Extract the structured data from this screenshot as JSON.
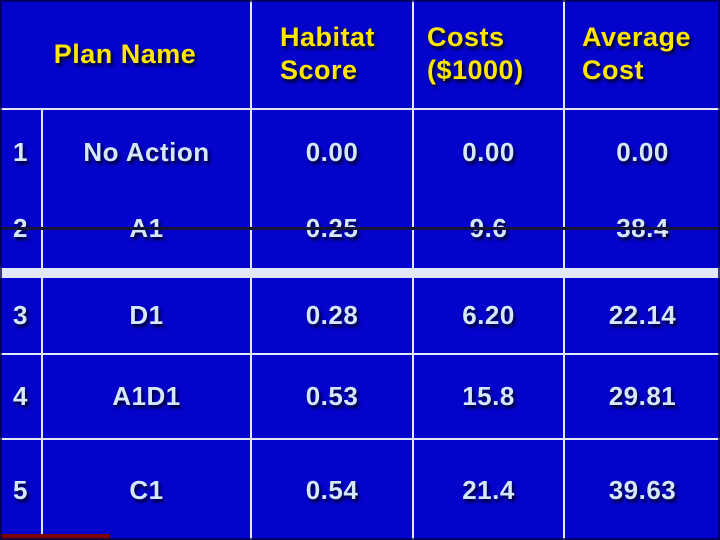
{
  "table": {
    "header": {
      "plan": "Plan Name",
      "habitat_line1": "Habitat",
      "habitat_line2": "Score",
      "costs_line1": "Costs",
      "costs_line2": "($1000)",
      "avg_line1": "Average",
      "avg_line2": "Cost"
    },
    "rows": [
      {
        "num": "1",
        "plan": "No Action",
        "habitat": "0.00",
        "costs": "0.00",
        "avg": "0.00",
        "struck": false
      },
      {
        "num": "2",
        "plan": "A1",
        "habitat": "0.25",
        "costs": "9.6",
        "avg": "38.4",
        "struck": true
      },
      {
        "num": "3",
        "plan": "D1",
        "habitat": "0.28",
        "costs": "6.20",
        "avg": "22.14",
        "struck": false
      },
      {
        "num": "4",
        "plan": "A1D1",
        "habitat": "0.53",
        "costs": "15.8",
        "avg": "29.81",
        "struck": false
      },
      {
        "num": "5",
        "plan": "C1",
        "habitat": "0.54",
        "costs": "21.4",
        "avg": "39.63",
        "struck": false
      }
    ]
  },
  "annotations": {
    "strikethrough": {
      "row": "2",
      "color": "#15153a"
    },
    "footer_bar": {
      "color": "#7a0505"
    }
  },
  "colors": {
    "cell_blue": "#0303cc",
    "grid_line": "#e2e7fa",
    "header_text": "#ffe600",
    "body_text": "#d5e8fb"
  },
  "chart_data": {
    "type": "table",
    "columns": [
      "",
      "Plan Name",
      "Habitat Score",
      "Costs ($1000)",
      "Average Cost"
    ],
    "rows": [
      [
        "1",
        "No Action",
        0.0,
        0.0,
        0.0
      ],
      [
        "2",
        "A1",
        0.25,
        9.6,
        38.4
      ],
      [
        "3",
        "D1",
        0.28,
        6.2,
        22.14
      ],
      [
        "4",
        "A1D1",
        0.53,
        15.8,
        29.81
      ],
      [
        "5",
        "C1",
        0.54,
        21.4,
        39.63
      ]
    ]
  }
}
